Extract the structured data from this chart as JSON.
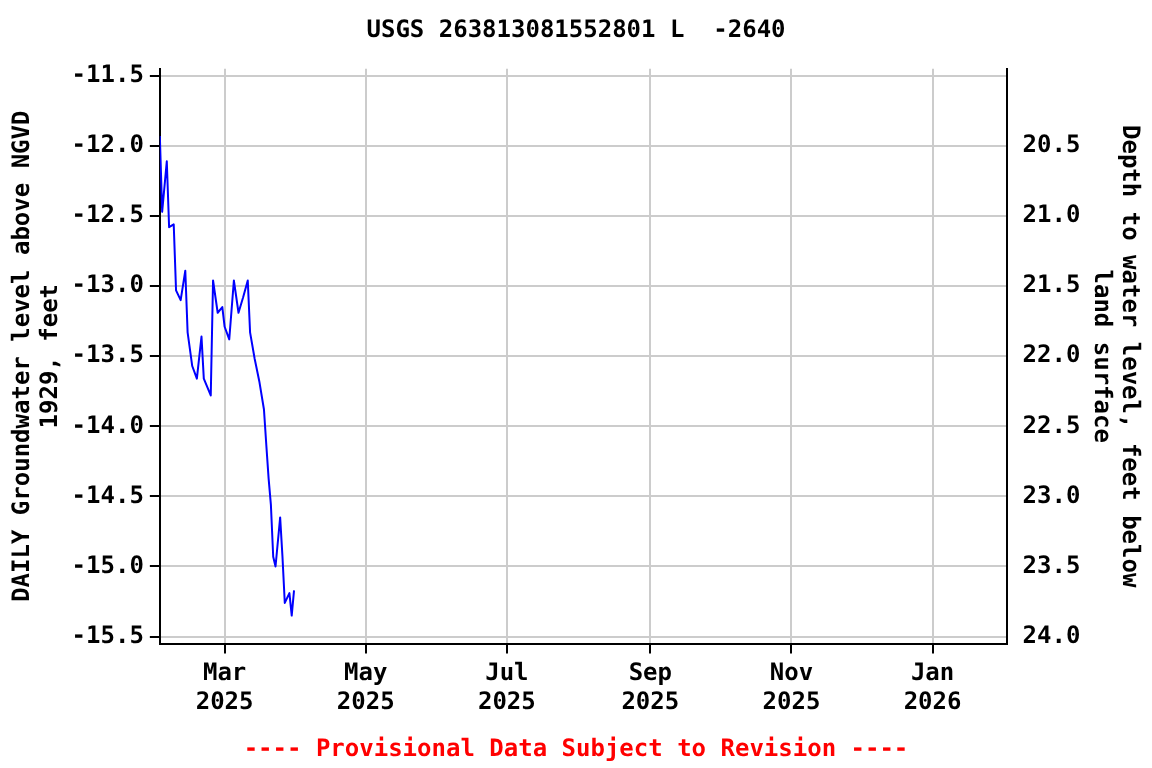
{
  "chart_data": {
    "type": "line",
    "title": "USGS 263813081552801 L  -2640",
    "xlabel": null,
    "ylabel": "DAILY Groundwater level above NGVD 1929, feet",
    "y2label": "Depth to water level, feet below land surface",
    "annotations": [
      "---- Provisional Data Subject to Revision ----"
    ],
    "x": [
      "2025-02-01",
      "2025-02-02",
      "2025-02-04",
      "2025-02-05",
      "2025-02-07",
      "2025-02-08",
      "2025-02-10",
      "2025-02-12",
      "2025-02-13",
      "2025-02-15",
      "2025-02-17",
      "2025-02-19",
      "2025-02-20",
      "2025-02-23",
      "2025-02-24",
      "2025-02-26",
      "2025-02-28",
      "2025-03-01",
      "2025-03-03",
      "2025-03-05",
      "2025-03-07",
      "2025-03-09",
      "2025-03-11",
      "2025-03-12",
      "2025-03-14",
      "2025-03-16",
      "2025-03-18",
      "2025-03-19",
      "2025-03-20",
      "2025-03-21",
      "2025-03-22",
      "2025-03-23",
      "2025-03-25",
      "2025-03-26",
      "2025-03-27",
      "2025-03-29",
      "2025-03-30",
      "2025-03-31"
    ],
    "series": [
      {
        "color": "#0000ff",
        "values": [
          -11.93,
          -12.47,
          -12.11,
          -12.58,
          -12.56,
          -13.03,
          -13.1,
          -12.89,
          -13.33,
          -13.57,
          -13.66,
          -13.36,
          -13.66,
          -13.78,
          -12.96,
          -13.19,
          -13.15,
          -13.29,
          -13.38,
          -12.96,
          -13.19,
          -13.08,
          -12.96,
          -13.33,
          -13.52,
          -13.68,
          -13.88,
          -14.13,
          -14.37,
          -14.56,
          -14.93,
          -15.0,
          -14.65,
          -14.93,
          -15.26,
          -15.19,
          -15.35,
          -15.17
        ]
      }
    ],
    "xlim": [
      "2025-02-01",
      "2026-02-02"
    ],
    "xticks": [
      {
        "value": "2025-03-01",
        "label": "Mar 2025"
      },
      {
        "value": "2025-05-01",
        "label": "May 2025"
      },
      {
        "value": "2025-07-01",
        "label": "Jul 2025"
      },
      {
        "value": "2025-09-01",
        "label": "Sep 2025"
      },
      {
        "value": "2025-11-01",
        "label": "Nov 2025"
      },
      {
        "value": "2026-01-01",
        "label": "Jan 2026"
      }
    ],
    "ylim": [
      -15.55,
      -11.45
    ],
    "yticks": [
      {
        "value": -15.5,
        "label": "-15.5"
      },
      {
        "value": -15,
        "label": "-15.0"
      },
      {
        "value": -14.5,
        "label": "-14.5"
      },
      {
        "value": -14,
        "label": "-14.0"
      },
      {
        "value": -13.5,
        "label": "-13.5"
      },
      {
        "value": -13,
        "label": "-13.0"
      },
      {
        "value": -12.5,
        "label": "-12.5"
      },
      {
        "value": -12,
        "label": "-12.0"
      },
      {
        "value": -11.5,
        "label": "-11.5"
      }
    ],
    "y2lim": [
      24.05,
      19.95
    ],
    "y2ticks": [
      {
        "value": 20.5,
        "label": "20.5"
      },
      {
        "value": 21,
        "label": "21.0"
      },
      {
        "value": 21.5,
        "label": "21.5"
      },
      {
        "value": 22,
        "label": "22.0"
      },
      {
        "value": 22.5,
        "label": "22.5"
      },
      {
        "value": 23,
        "label": "23.0"
      },
      {
        "value": 23.5,
        "label": "23.5"
      },
      {
        "value": 24,
        "label": "24.0"
      }
    ],
    "grid": true,
    "legend": false,
    "marker": "none",
    "line_style": "solid"
  }
}
